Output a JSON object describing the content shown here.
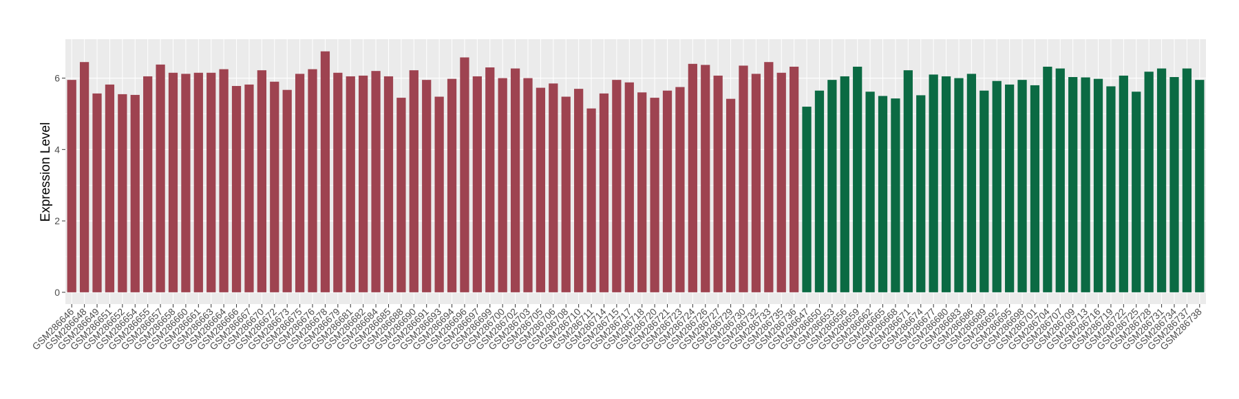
{
  "chart_data": {
    "type": "bar",
    "ylabel": "Expression Level",
    "categories": [
      "GSM286646",
      "GSM286648",
      "GSM286649",
      "GSM286651",
      "GSM286652",
      "GSM286654",
      "GSM286655",
      "GSM286657",
      "GSM286658",
      "GSM286660",
      "GSM286661",
      "GSM286663",
      "GSM286664",
      "GSM286666",
      "GSM286667",
      "GSM286670",
      "GSM286672",
      "GSM286673",
      "GSM286675",
      "GSM286676",
      "GSM286678",
      "GSM286679",
      "GSM286681",
      "GSM286682",
      "GSM286684",
      "GSM286685",
      "GSM286688",
      "GSM286690",
      "GSM286691",
      "GSM286693",
      "GSM286694",
      "GSM286696",
      "GSM286697",
      "GSM286699",
      "GSM286700",
      "GSM286702",
      "GSM286703",
      "GSM286705",
      "GSM286706",
      "GSM286708",
      "GSM286710",
      "GSM286711",
      "GSM286714",
      "GSM286715",
      "GSM286717",
      "GSM286718",
      "GSM286720",
      "GSM286721",
      "GSM286723",
      "GSM286724",
      "GSM286726",
      "GSM286727",
      "GSM286729",
      "GSM286730",
      "GSM286732",
      "GSM286733",
      "GSM286735",
      "GSM286736",
      "GSM286647",
      "GSM286650",
      "GSM286653",
      "GSM286656",
      "GSM286659",
      "GSM286662",
      "GSM286665",
      "GSM286668",
      "GSM286671",
      "GSM286674",
      "GSM286677",
      "GSM286680",
      "GSM286683",
      "GSM286686",
      "GSM286689",
      "GSM286692",
      "GSM286695",
      "GSM286698",
      "GSM286701",
      "GSM286704",
      "GSM286707",
      "GSM286709",
      "GSM286713",
      "GSM286716",
      "GSM286719",
      "GSM286722",
      "GSM286725",
      "GSM286728",
      "GSM286731",
      "GSM286734",
      "GSM286737",
      "GSM286738"
    ],
    "values": [
      5.95,
      6.45,
      5.57,
      5.82,
      5.55,
      5.53,
      6.05,
      6.38,
      6.15,
      6.12,
      6.15,
      6.15,
      6.25,
      5.78,
      5.82,
      6.22,
      5.9,
      5.67,
      6.12,
      6.25,
      6.75,
      6.15,
      6.05,
      6.07,
      6.2,
      6.05,
      5.45,
      6.22,
      5.95,
      5.48,
      5.98,
      6.58,
      6.05,
      6.3,
      6.0,
      6.27,
      6.0,
      5.73,
      5.85,
      5.48,
      5.7,
      5.15,
      5.57,
      5.95,
      5.88,
      5.6,
      5.45,
      5.65,
      5.75,
      6.4,
      6.37,
      6.07,
      5.42,
      6.35,
      6.12,
      6.45,
      6.15,
      6.32,
      5.2,
      5.65,
      5.95,
      6.05,
      6.32,
      5.62,
      5.5,
      5.43,
      6.22,
      5.52,
      6.1,
      6.05,
      6.0,
      6.12,
      5.65,
      5.92,
      5.82,
      5.95,
      5.8,
      6.32,
      6.27,
      6.03,
      6.02,
      5.98,
      5.77,
      6.07,
      5.62,
      6.18,
      6.27,
      6.03,
      6.27,
      5.95
    ],
    "bar_colors": [
      "#9e4350",
      "#9e4350",
      "#9e4350",
      "#9e4350",
      "#9e4350",
      "#9e4350",
      "#9e4350",
      "#9e4350",
      "#9e4350",
      "#9e4350",
      "#9e4350",
      "#9e4350",
      "#9e4350",
      "#9e4350",
      "#9e4350",
      "#9e4350",
      "#9e4350",
      "#9e4350",
      "#9e4350",
      "#9e4350",
      "#9e4350",
      "#9e4350",
      "#9e4350",
      "#9e4350",
      "#9e4350",
      "#9e4350",
      "#9e4350",
      "#9e4350",
      "#9e4350",
      "#9e4350",
      "#9e4350",
      "#9e4350",
      "#9e4350",
      "#9e4350",
      "#9e4350",
      "#9e4350",
      "#9e4350",
      "#9e4350",
      "#9e4350",
      "#9e4350",
      "#9e4350",
      "#9e4350",
      "#9e4350",
      "#9e4350",
      "#9e4350",
      "#9e4350",
      "#9e4350",
      "#9e4350",
      "#9e4350",
      "#9e4350",
      "#9e4350",
      "#9e4350",
      "#9e4350",
      "#9e4350",
      "#9e4350",
      "#9e4350",
      "#9e4350",
      "#9e4350",
      "#0b6a43",
      "#0b6a43",
      "#0b6a43",
      "#0b6a43",
      "#0b6a43",
      "#0b6a43",
      "#0b6a43",
      "#0b6a43",
      "#0b6a43",
      "#0b6a43",
      "#0b6a43",
      "#0b6a43",
      "#0b6a43",
      "#0b6a43",
      "#0b6a43",
      "#0b6a43",
      "#0b6a43",
      "#0b6a43",
      "#0b6a43",
      "#0b6a43",
      "#0b6a43",
      "#0b6a43",
      "#0b6a43",
      "#0b6a43",
      "#0b6a43",
      "#0b6a43",
      "#0b6a43",
      "#0b6a43",
      "#0b6a43",
      "#0b6a43",
      "#0b6a43",
      "#0b6a43"
    ],
    "ylim": [
      -0.33,
      7.09
    ],
    "yticks": [
      0,
      2,
      4,
      6
    ],
    "grid": true
  }
}
